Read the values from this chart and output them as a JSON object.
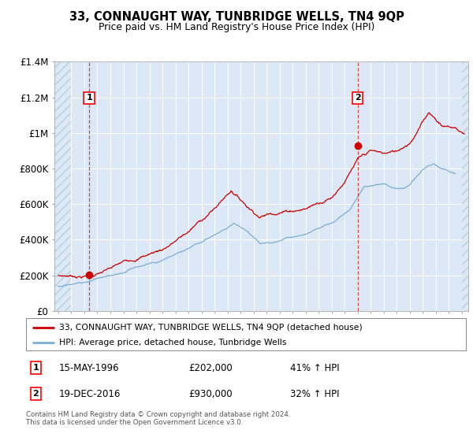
{
  "title": "33, CONNAUGHT WAY, TUNBRIDGE WELLS, TN4 9QP",
  "subtitle": "Price paid vs. HM Land Registry's House Price Index (HPI)",
  "ylim": [
    0,
    1400000
  ],
  "xlim_start": 1993.7,
  "xlim_end": 2025.5,
  "background_color": "#dce8f5",
  "hatch_color": "#b8cfe0",
  "red_line_color": "#cc0000",
  "blue_line_color": "#7aafd4",
  "marker1_date": 1996.37,
  "marker1_price": 202000,
  "marker2_date": 2017.0,
  "marker2_price": 930000,
  "legend_red_label": "33, CONNAUGHT WAY, TUNBRIDGE WELLS, TN4 9QP (detached house)",
  "legend_blue_label": "HPI: Average price, detached house, Tunbridge Wells",
  "footer": "Contains HM Land Registry data © Crown copyright and database right 2024.\nThis data is licensed under the Open Government Licence v3.0.",
  "yticks": [
    0,
    200000,
    400000,
    600000,
    800000,
    1000000,
    1200000,
    1400000
  ],
  "ytick_labels": [
    "£0",
    "£200K",
    "£400K",
    "£600K",
    "£800K",
    "£1M",
    "£1.2M",
    "£1.4M"
  ]
}
